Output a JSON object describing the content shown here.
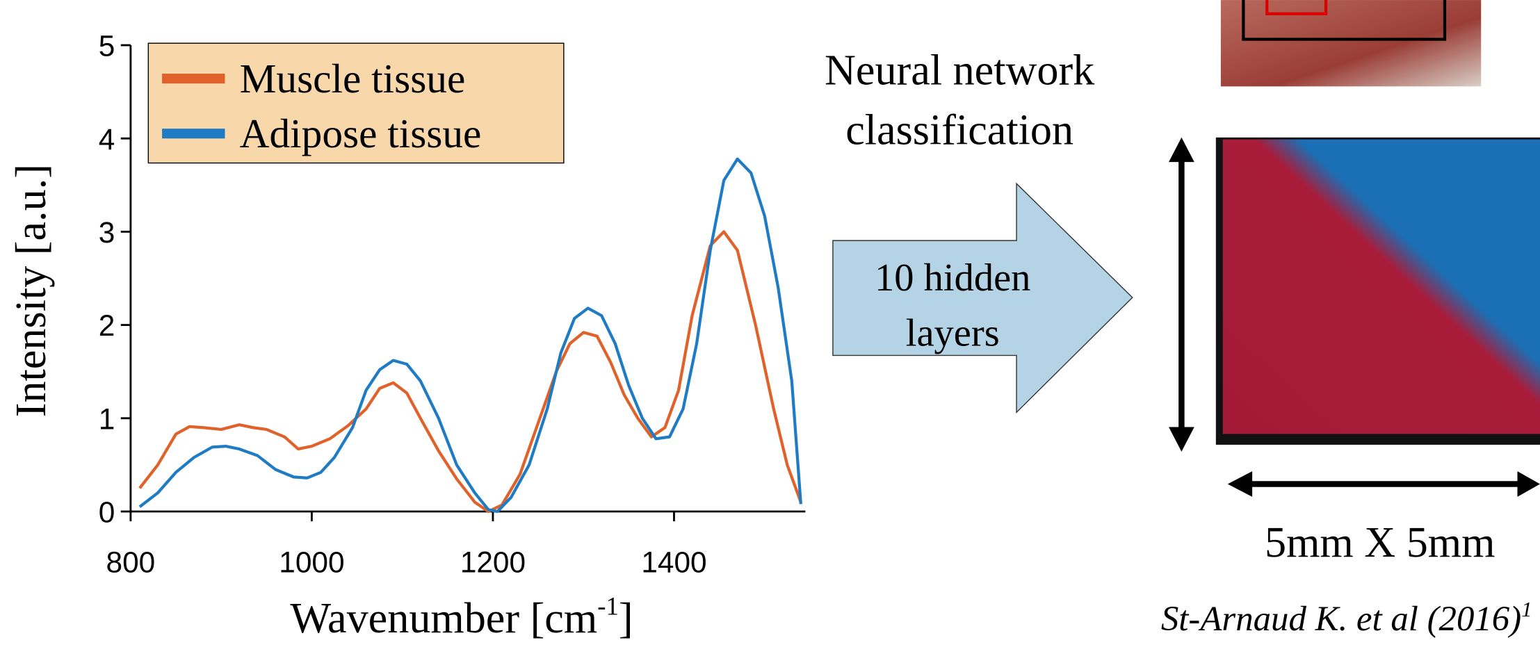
{
  "chart_data": {
    "type": "line",
    "xlabel": "Wavenumber [cm",
    "xlabel_sup": "-1",
    "xlabel_end": "]",
    "ylabel": "Intensity [a.u.]",
    "xlim": [
      800,
      1545
    ],
    "xticks": [
      800,
      1000,
      1200,
      1400
    ],
    "ylim": [
      0,
      5
    ],
    "yticks": [
      0,
      1,
      2,
      3,
      4,
      5
    ],
    "legend": "upper left",
    "series": [
      {
        "name": "Muscle tissue",
        "color": "#e0622a",
        "x": [
          810,
          830,
          850,
          865,
          880,
          900,
          920,
          935,
          950,
          970,
          985,
          1000,
          1020,
          1040,
          1060,
          1075,
          1090,
          1105,
          1120,
          1140,
          1160,
          1180,
          1195,
          1210,
          1230,
          1250,
          1270,
          1285,
          1300,
          1315,
          1330,
          1345,
          1360,
          1375,
          1390,
          1405,
          1420,
          1440,
          1455,
          1470,
          1490,
          1510,
          1525,
          1540
        ],
        "values": [
          0.25,
          0.5,
          0.83,
          0.91,
          0.9,
          0.88,
          0.93,
          0.9,
          0.88,
          0.8,
          0.67,
          0.7,
          0.78,
          0.92,
          1.1,
          1.32,
          1.38,
          1.27,
          1.0,
          0.65,
          0.35,
          0.1,
          0.0,
          0.07,
          0.4,
          0.95,
          1.5,
          1.8,
          1.92,
          1.88,
          1.6,
          1.25,
          1.0,
          0.8,
          0.9,
          1.3,
          2.1,
          2.85,
          3.0,
          2.8,
          2.0,
          1.1,
          0.5,
          0.1
        ]
      },
      {
        "name": "Adipose tissue",
        "color": "#1f7cc4",
        "x": [
          810,
          830,
          850,
          870,
          890,
          905,
          920,
          940,
          960,
          980,
          995,
          1010,
          1025,
          1045,
          1060,
          1075,
          1090,
          1105,
          1120,
          1140,
          1160,
          1180,
          1195,
          1205,
          1220,
          1240,
          1260,
          1275,
          1290,
          1305,
          1320,
          1335,
          1350,
          1365,
          1380,
          1395,
          1410,
          1425,
          1440,
          1455,
          1470,
          1485,
          1500,
          1515,
          1530,
          1540
        ],
        "values": [
          0.05,
          0.2,
          0.42,
          0.58,
          0.69,
          0.7,
          0.67,
          0.6,
          0.45,
          0.37,
          0.36,
          0.42,
          0.58,
          0.9,
          1.3,
          1.52,
          1.62,
          1.58,
          1.4,
          1.0,
          0.5,
          0.2,
          0.02,
          0.0,
          0.15,
          0.5,
          1.1,
          1.7,
          2.07,
          2.18,
          2.1,
          1.8,
          1.35,
          1.0,
          0.78,
          0.8,
          1.1,
          1.8,
          2.8,
          3.55,
          3.78,
          3.63,
          3.17,
          2.4,
          1.4,
          0.08
        ]
      }
    ]
  },
  "diagram": {
    "title_lines": [
      "Neural network",
      "classification"
    ],
    "arrow_lines": [
      "10 hidden",
      "layers"
    ],
    "scale": "5mm X 5mm",
    "citation": "St-Arnaud K. et al (2016)",
    "citation_sup": "1"
  }
}
